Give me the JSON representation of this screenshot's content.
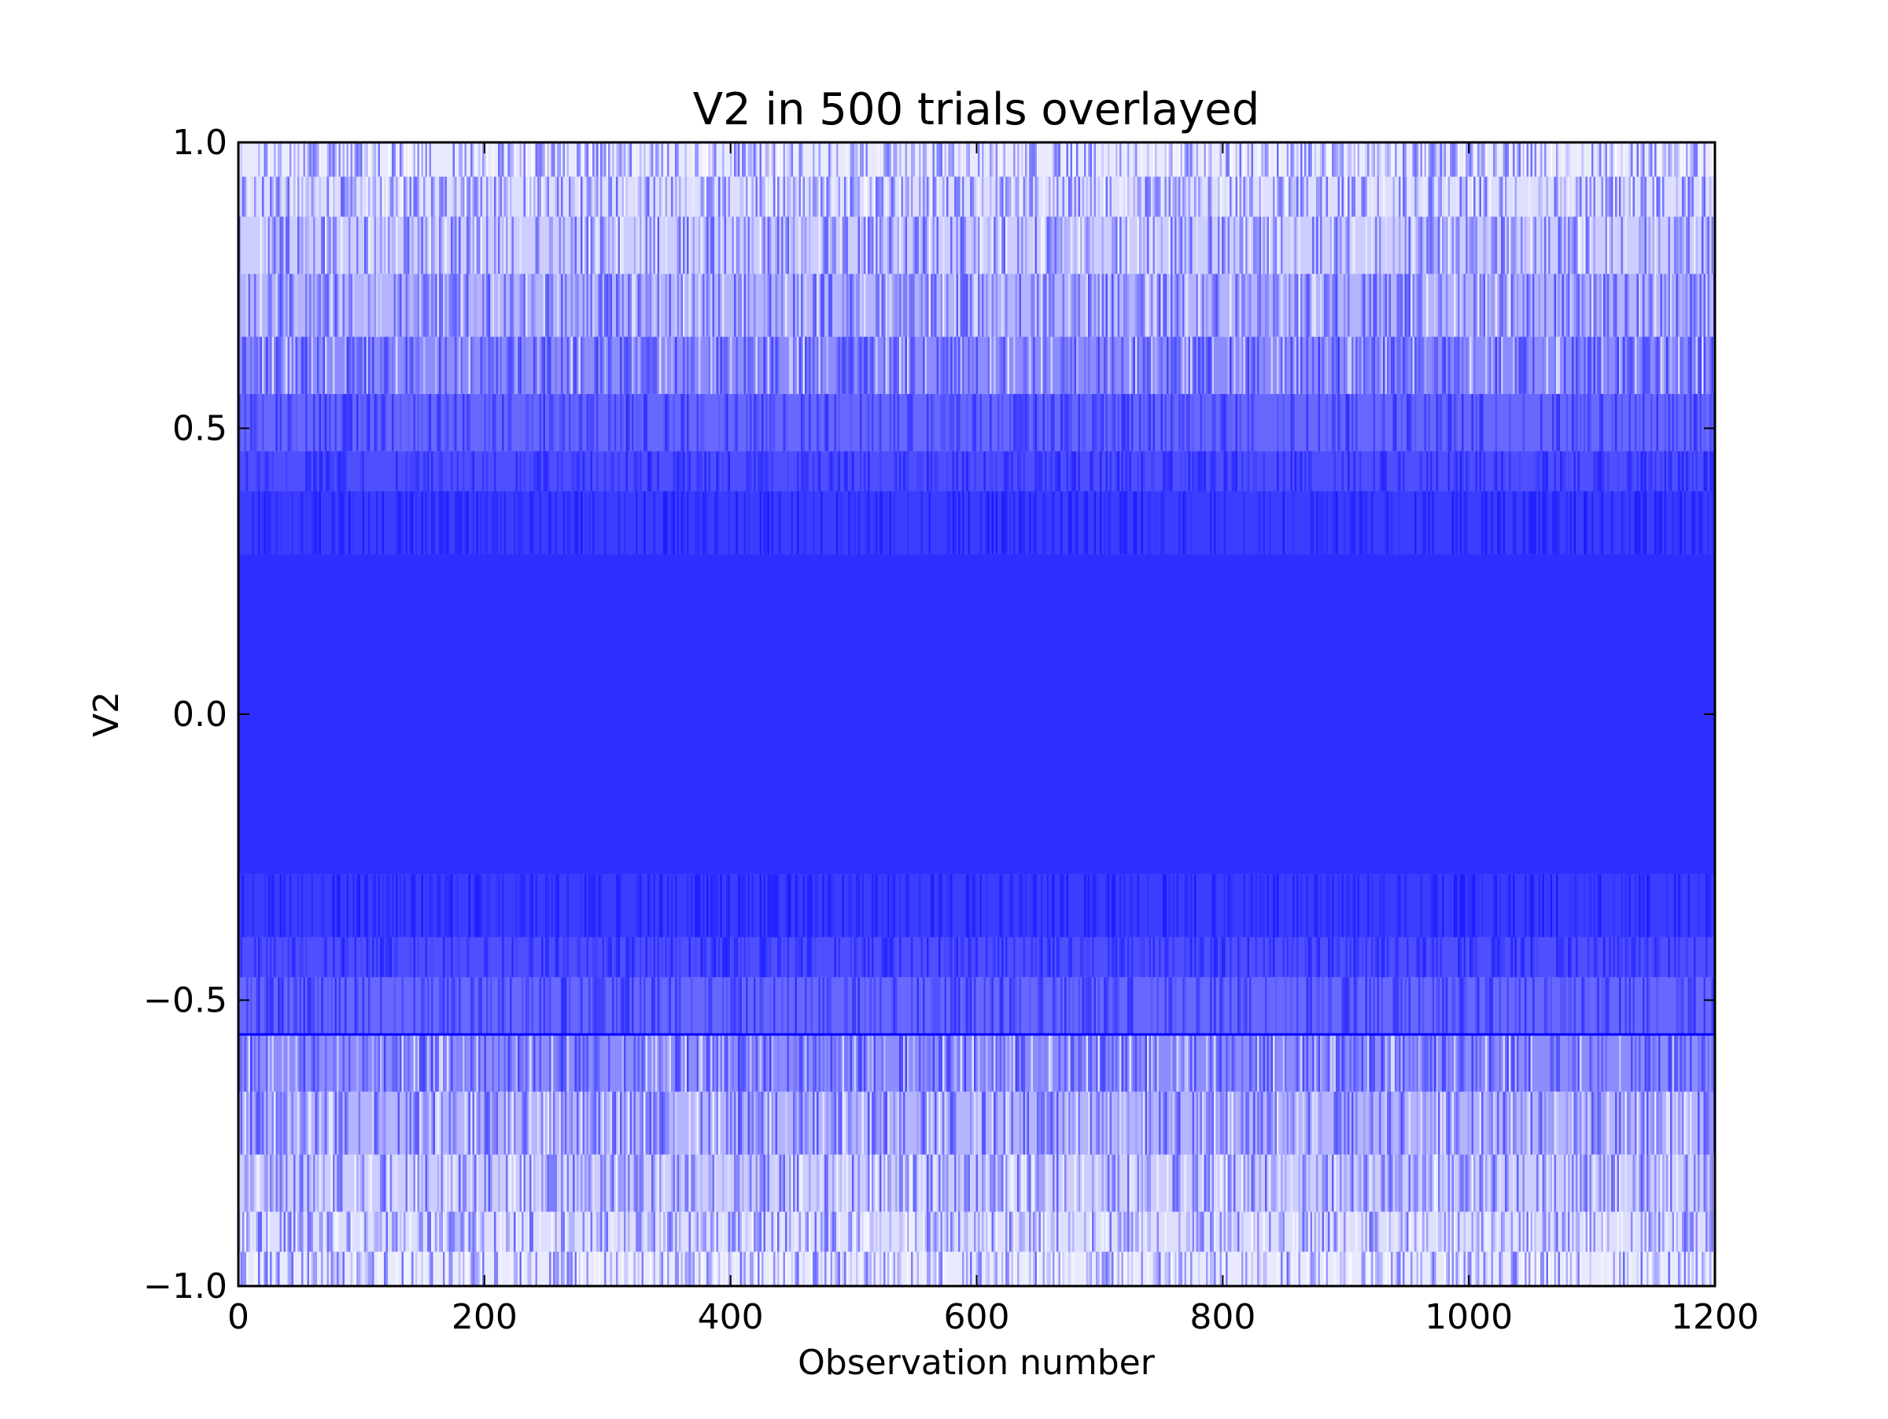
{
  "chart_data": {
    "type": "line",
    "title": "V2 in 500 trials overlayed",
    "xlabel": "Observation number",
    "ylabel": "V2",
    "xlim": [
      0,
      1200
    ],
    "ylim": [
      -1.0,
      1.0
    ],
    "xticks": [
      0,
      200,
      400,
      600,
      800,
      1000,
      1200
    ],
    "xtick_labels": [
      "0",
      "200",
      "400",
      "600",
      "800",
      "1000",
      "1200"
    ],
    "yticks": [
      -1.0,
      -0.5,
      0.0,
      0.5,
      1.0
    ],
    "ytick_labels": [
      "−1.0",
      "−0.5",
      "0.0",
      "0.5",
      "1.0"
    ],
    "grid": false,
    "legend": "none",
    "series_count": 500,
    "observations_per_series": 1200,
    "series_color": "#0000ff",
    "value_bands": [
      {
        "range": [
          0.94,
          1.0
        ],
        "density": 0.1
      },
      {
        "range": [
          0.87,
          0.94
        ],
        "density": 0.16
      },
      {
        "range": [
          0.77,
          0.87
        ],
        "density": 0.24
      },
      {
        "range": [
          0.66,
          0.77
        ],
        "density": 0.36
      },
      {
        "range": [
          0.56,
          0.66
        ],
        "density": 0.55
      },
      {
        "range": [
          0.46,
          0.56
        ],
        "density": 0.72
      },
      {
        "range": [
          0.39,
          0.46
        ],
        "density": 0.84
      },
      {
        "range": [
          0.28,
          0.39
        ],
        "density": 0.93
      },
      {
        "range": [
          -0.28,
          0.28
        ],
        "density": 1.0
      },
      {
        "range": [
          -0.39,
          -0.28
        ],
        "density": 0.93
      },
      {
        "range": [
          -0.46,
          -0.39
        ],
        "density": 0.84
      },
      {
        "range": [
          -0.56,
          -0.46
        ],
        "density": 0.72
      },
      {
        "range": [
          -0.66,
          -0.56
        ],
        "density": 0.55
      },
      {
        "range": [
          -0.77,
          -0.66
        ],
        "density": 0.36
      },
      {
        "range": [
          -0.87,
          -0.77
        ],
        "density": 0.24
      },
      {
        "range": [
          -0.94,
          -0.87
        ],
        "density": 0.16
      },
      {
        "range": [
          -1.0,
          -0.94
        ],
        "density": 0.1
      }
    ],
    "horizontal_lines": [
      -0.56
    ]
  }
}
